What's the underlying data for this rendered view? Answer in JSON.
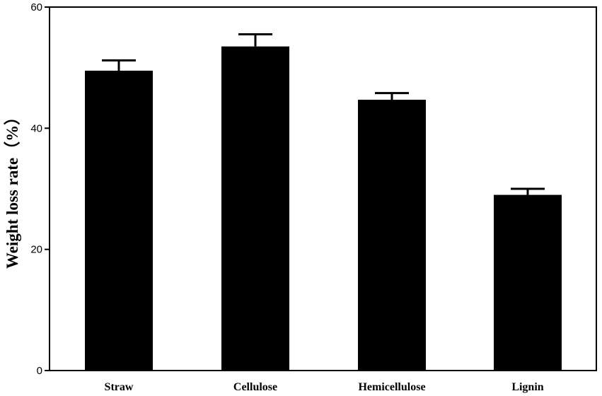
{
  "chart_data": {
    "type": "bar",
    "title": "",
    "xlabel": "",
    "ylabel": "Weight loss rate（%）",
    "ylim": [
      0,
      60
    ],
    "yticks": [
      0,
      20,
      40,
      60
    ],
    "grid": false,
    "categories": [
      "Straw",
      "Cellulose",
      "Hemicellulose",
      "Lignin"
    ],
    "values": [
      49.5,
      53.5,
      44.7,
      29.0
    ],
    "errors": [
      1.7,
      2.0,
      1.1,
      1.0
    ],
    "bar_color": "#000000"
  }
}
